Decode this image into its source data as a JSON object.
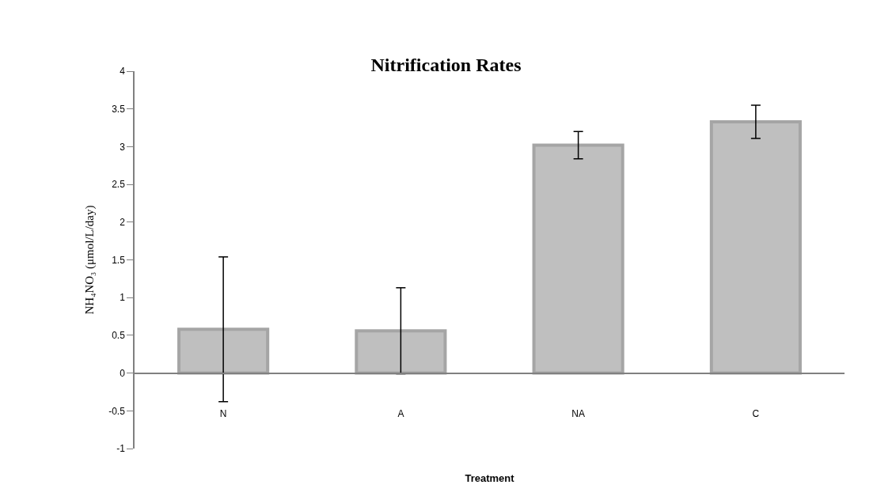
{
  "chart_data": {
    "type": "bar",
    "title": "Nitrification Rates",
    "xlabel": "Treatment",
    "ylabel": "NH₄NO₃ (μmol/L/day)",
    "categories": [
      "N",
      "A",
      "NA",
      "C"
    ],
    "values": [
      0.58,
      0.56,
      3.02,
      3.33
    ],
    "errors": [
      0.96,
      0.57,
      0.18,
      0.22
    ],
    "color": "#bfbfbf",
    "ylim": [
      -1,
      4
    ],
    "yticks": [
      -1,
      -0.5,
      0,
      0.5,
      1,
      1.5,
      2,
      2.5,
      3,
      3.5,
      4
    ]
  }
}
